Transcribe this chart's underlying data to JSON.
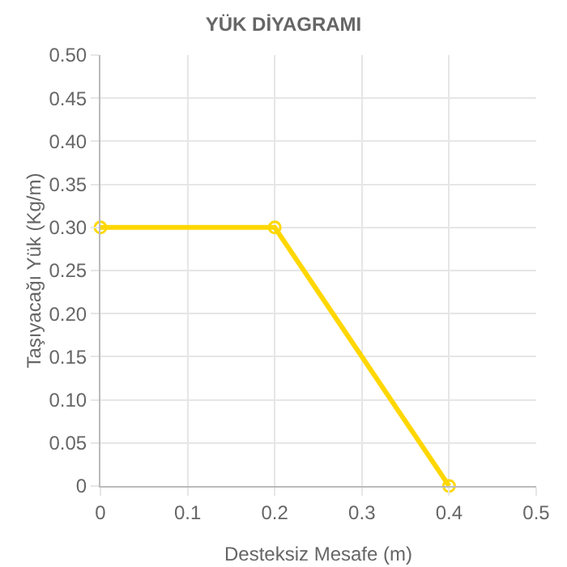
{
  "chart_data": {
    "type": "line",
    "title": "YÜK DİYAGRAMI",
    "xlabel": "Desteksiz Mesafe (m)",
    "ylabel": "Taşıyacağı Yük (Kg/m)",
    "x": [
      0,
      0.2,
      0.4
    ],
    "series": [
      {
        "color": "#ffd700",
        "values": [
          0.3,
          0.3,
          0
        ]
      }
    ],
    "xlim": [
      0,
      0.5
    ],
    "xticks": [
      0,
      0.1,
      0.2,
      0.3,
      0.4,
      0.5
    ],
    "ylim": [
      0,
      0.5
    ],
    "yticks": [
      0,
      0.05,
      {
        "value": 0.1,
        "label": "0.10"
      },
      0.15,
      {
        "value": 0.2,
        "label": "0.20"
      },
      0.25,
      {
        "value": 0.3,
        "label": "0.30"
      },
      0.35,
      {
        "value": 0.4,
        "label": "0.40"
      },
      0.45,
      {
        "value": 0.5,
        "label": "0.50"
      }
    ],
    "grid": true,
    "marker": "circle",
    "line_style": "solid"
  }
}
